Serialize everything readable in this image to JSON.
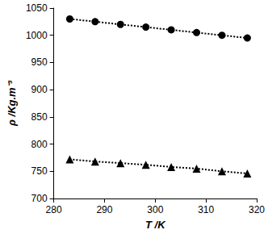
{
  "chart_data": {
    "type": "scatter",
    "x_label": "T /K",
    "y_label": "ρ /Kg.m⁻³",
    "x": [
      283.15,
      288.15,
      293.15,
      298.15,
      303.15,
      308.15,
      313.15,
      318.15
    ],
    "series": [
      {
        "color": "#000000",
        "marker": "circle",
        "line_style": "dotted",
        "values": [
          1030,
          1025,
          1020,
          1015,
          1010,
          1005,
          1000,
          995
        ]
      },
      {
        "color": "#000000",
        "marker": "triangle",
        "line_style": "dotted",
        "values": [
          772,
          768,
          765,
          762,
          758,
          755,
          750,
          746
        ]
      }
    ],
    "xlim": [
      280,
      320
    ],
    "xticks": [
      280,
      290,
      300,
      310,
      320
    ],
    "ylim": [
      700,
      1050
    ],
    "yticks": [
      700,
      750,
      800,
      850,
      900,
      950,
      1000,
      1050
    ],
    "grid": false
  }
}
